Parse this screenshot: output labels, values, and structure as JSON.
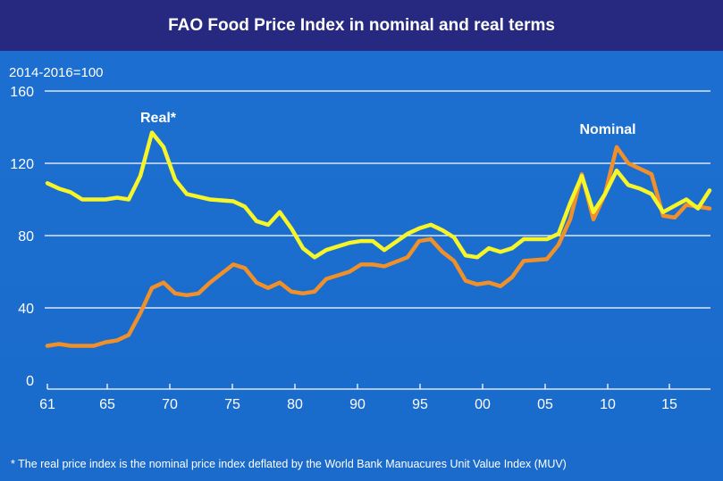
{
  "chart_data": {
    "type": "line",
    "title": "FAO Food Price Index in nominal and real terms",
    "ylabel": "2014-2016=100",
    "ylim": [
      0,
      160
    ],
    "yticks": [
      "160",
      "120",
      "80",
      "40",
      "0"
    ],
    "ytick_values": [
      160,
      120,
      80,
      40,
      0
    ],
    "xtick_labels": [
      "61",
      "65",
      "70",
      "75",
      "80",
      "90",
      "95",
      "00",
      "05",
      "10",
      "15"
    ],
    "grid": true,
    "colors": {
      "background": "#1b6dcc",
      "title_bar": "#26297f",
      "real": "#f5f52a",
      "nominal": "#f0902a",
      "grid": "#ffffff"
    },
    "series": [
      {
        "name": "Real*",
        "x": [
          1961,
          1962,
          1963,
          1964,
          1965,
          1966,
          1967,
          1968,
          1969,
          1970,
          1971,
          1972,
          1973,
          1975,
          1977,
          1978,
          1979,
          1980,
          1981,
          1982,
          1983,
          1984,
          1985,
          1987,
          1988,
          1989,
          1990,
          1992,
          1993,
          1994,
          1995,
          1996,
          1997,
          1998,
          1999,
          2000,
          2001,
          2002,
          2004,
          2005,
          2006,
          2007,
          2008,
          2009,
          2010,
          2011,
          2012,
          2013,
          2014,
          2016,
          2017,
          2018
        ],
        "values": [
          109,
          106,
          104,
          100,
          100,
          100,
          101,
          100,
          113,
          137,
          129,
          111,
          103,
          100,
          99,
          96,
          88,
          86,
          93,
          84,
          73,
          68,
          72,
          76,
          77,
          77,
          72,
          81,
          84,
          86,
          83,
          79,
          69,
          68,
          73,
          71,
          73,
          78,
          78,
          81,
          98,
          113,
          93,
          103,
          116,
          108,
          106,
          103,
          93,
          100,
          95,
          105
        ]
      },
      {
        "name": "Nominal",
        "x": [
          1961,
          1962,
          1963,
          1964,
          1965,
          1966,
          1967,
          1968,
          1969,
          1970,
          1971,
          1972,
          1973,
          1974,
          1975,
          1977,
          1978,
          1979,
          1980,
          1981,
          1982,
          1983,
          1984,
          1985,
          1987,
          1988,
          1989,
          1990,
          1992,
          1993,
          1994,
          1995,
          1996,
          1997,
          1998,
          1999,
          2000,
          2001,
          2002,
          2004,
          2005,
          2006,
          2007,
          2008,
          2009,
          2010,
          2011,
          2012,
          2013,
          2014,
          2015,
          2016,
          2018
        ],
        "values": [
          19,
          20,
          19,
          19,
          19,
          21,
          22,
          25,
          37,
          51,
          54,
          48,
          47,
          48,
          54,
          64,
          62,
          54,
          51,
          54,
          49,
          48,
          49,
          56,
          60,
          64,
          64,
          63,
          68,
          77,
          78,
          71,
          66,
          55,
          53,
          54,
          52,
          57,
          66,
          67,
          75,
          89,
          114,
          89,
          103,
          129,
          120,
          117,
          114,
          91,
          90,
          97,
          95
        ]
      }
    ],
    "annotations": [
      "Real*",
      "Nominal"
    ],
    "footnote": "* The real price index is the nominal price index deflated by the World Bank Manuacures Unit Value Index (MUV)"
  }
}
